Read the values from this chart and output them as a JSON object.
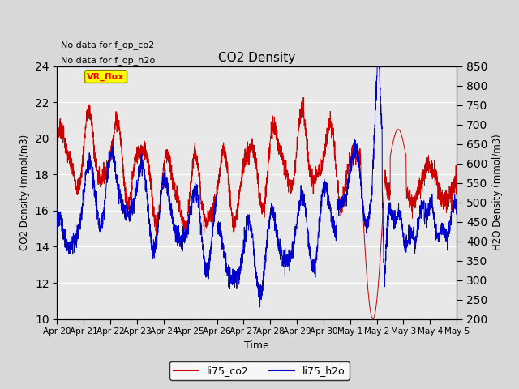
{
  "title": "CO2 Density",
  "xlabel": "Time",
  "ylabel_left": "CO2 Density (mmol/m3)",
  "ylabel_right": "H2O Density (mmol/m3)",
  "ylim_left": [
    10,
    24
  ],
  "ylim_right": [
    200,
    850
  ],
  "yticks_left": [
    10,
    12,
    14,
    16,
    18,
    20,
    22,
    24
  ],
  "yticks_right": [
    200,
    250,
    300,
    350,
    400,
    450,
    500,
    550,
    600,
    650,
    700,
    750,
    800,
    850
  ],
  "annotation1": "No data for f_op_co2",
  "annotation2": "No data for f_op_h2o",
  "legend_label1": "li75_co2",
  "legend_label2": "li75_h2o",
  "vr_flux_label": "VR_flux",
  "color_co2": "#cc0000",
  "color_h2o": "#0000cc",
  "fig_bg": "#d8d8d8",
  "plot_bg": "#e8e8e8",
  "grid_color": "#ffffff",
  "x_tick_labels": [
    "Apr 20",
    "Apr 21",
    "Apr 22",
    "Apr 23",
    "Apr 24",
    "Apr 25",
    "Apr 26",
    "Apr 27",
    "Apr 28",
    "Apr 29",
    "Apr 30",
    "May 1",
    "May 2",
    "May 3",
    "May 4",
    "May 5"
  ],
  "x_tick_positions": [
    0,
    1,
    2,
    3,
    4,
    5,
    6,
    7,
    8,
    9,
    10,
    11,
    12,
    13,
    14,
    15
  ],
  "n_points": 3000,
  "seed": 7
}
